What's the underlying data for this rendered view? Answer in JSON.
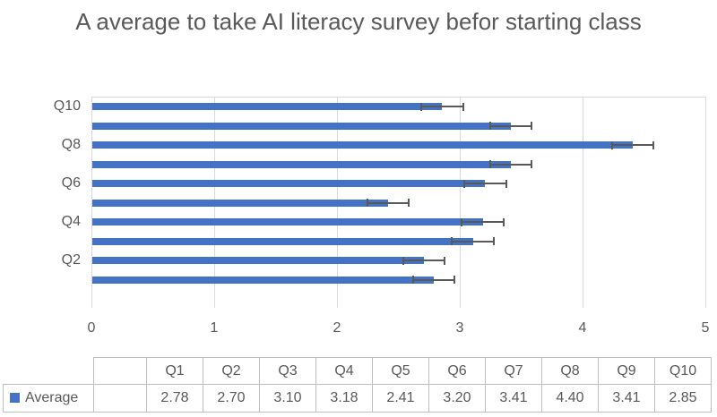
{
  "chart_data": {
    "type": "bar",
    "orientation": "horizontal",
    "title": "A average to take AI literacy survey befor starting class",
    "categories": [
      "Q1",
      "Q2",
      "Q3",
      "Q4",
      "Q5",
      "Q6",
      "Q7",
      "Q8",
      "Q9",
      "Q10"
    ],
    "series": [
      {
        "name": "Average",
        "values": [
          2.78,
          2.7,
          3.1,
          3.18,
          2.41,
          3.2,
          3.41,
          4.4,
          3.41,
          2.85
        ],
        "error_plus_minus": 0.17
      }
    ],
    "xlim": [
      0,
      5
    ],
    "x_tick_labels": [
      "0",
      "1",
      "2",
      "3",
      "4",
      "5"
    ],
    "y_axis_labels_shown": [
      "Q2",
      "Q4",
      "Q6",
      "Q8",
      "Q10"
    ],
    "grid": true,
    "legend_position": "data-table",
    "colors": {
      "bar": "#4472C4",
      "error_bar": "#595959",
      "gridline": "#D9D9D9",
      "text": "#595959",
      "table_border": "#BFBFBF"
    }
  },
  "data_table": {
    "legend_label": "Average",
    "headers": [
      "Q1",
      "Q2",
      "Q3",
      "Q4",
      "Q5",
      "Q6",
      "Q7",
      "Q8",
      "Q9",
      "Q10"
    ],
    "values": [
      "2.78",
      "2.70",
      "3.10",
      "3.18",
      "2.41",
      "3.20",
      "3.41",
      "4.40",
      "3.41",
      "2.85"
    ]
  }
}
